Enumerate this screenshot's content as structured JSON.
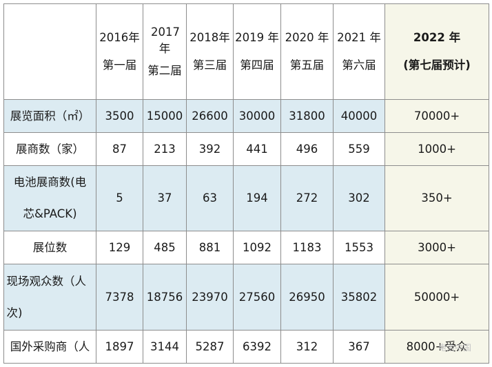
{
  "header": {
    "corner": "",
    "years": [
      {
        "year": "2016年",
        "session": "第一届"
      },
      {
        "year": "2017年",
        "session": "第二届"
      },
      {
        "year": "2018年",
        "session": "第三届"
      },
      {
        "year": "2019 年",
        "session": "第四届"
      },
      {
        "year": "2020 年",
        "session": "第五届"
      },
      {
        "year": "2021 年",
        "session": "第六届"
      },
      {
        "year": "2022 年",
        "session": "(第七届预计)"
      }
    ]
  },
  "rows": [
    {
      "label": "展览面积（㎡）",
      "values": [
        "3500",
        "15000",
        "26600",
        "30000",
        "31800",
        "40000",
        "70000+"
      ]
    },
    {
      "label": "展商数（家）",
      "values": [
        "87",
        "213",
        "392",
        "441",
        "496",
        "559",
        "1000+"
      ]
    },
    {
      "label": "电池展商数(电芯&PACK)",
      "values": [
        "5",
        "37",
        "63",
        "194",
        "272",
        "302",
        "350+"
      ]
    },
    {
      "label": "展位数",
      "values": [
        "129",
        "485",
        "881",
        "1092",
        "1183",
        "1553",
        "3000+"
      ]
    },
    {
      "label": "现场观众数（人次)",
      "values": [
        "7378",
        "18756",
        "23970",
        "27560",
        "26950",
        "35802",
        "50000+"
      ]
    },
    {
      "label": "国外采购商（人",
      "values": [
        "1897",
        "3144",
        "5287",
        "6392",
        "312",
        "367",
        "8000+受众"
      ]
    }
  ],
  "watermark": "电池中国"
}
